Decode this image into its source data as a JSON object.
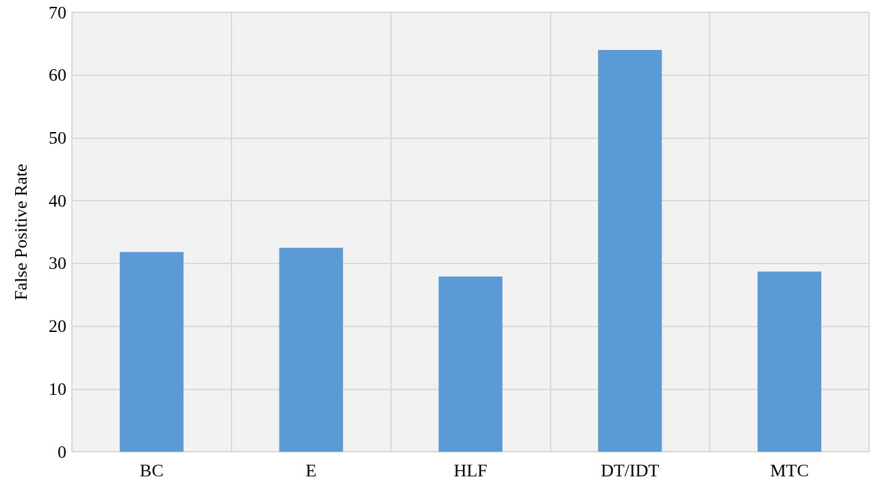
{
  "chart_data": {
    "type": "bar",
    "ylabel": "False Positive Rate",
    "categories": [
      "BC",
      "E",
      "HLF",
      "DT/IDT",
      "MTC"
    ],
    "values": [
      31.8,
      32.5,
      27.9,
      64.0,
      28.7
    ],
    "color": "#5b9bd5",
    "ylim": [
      0,
      70
    ],
    "yticks": [
      0,
      10,
      20,
      30,
      40,
      50,
      60,
      70
    ],
    "grid": true
  }
}
